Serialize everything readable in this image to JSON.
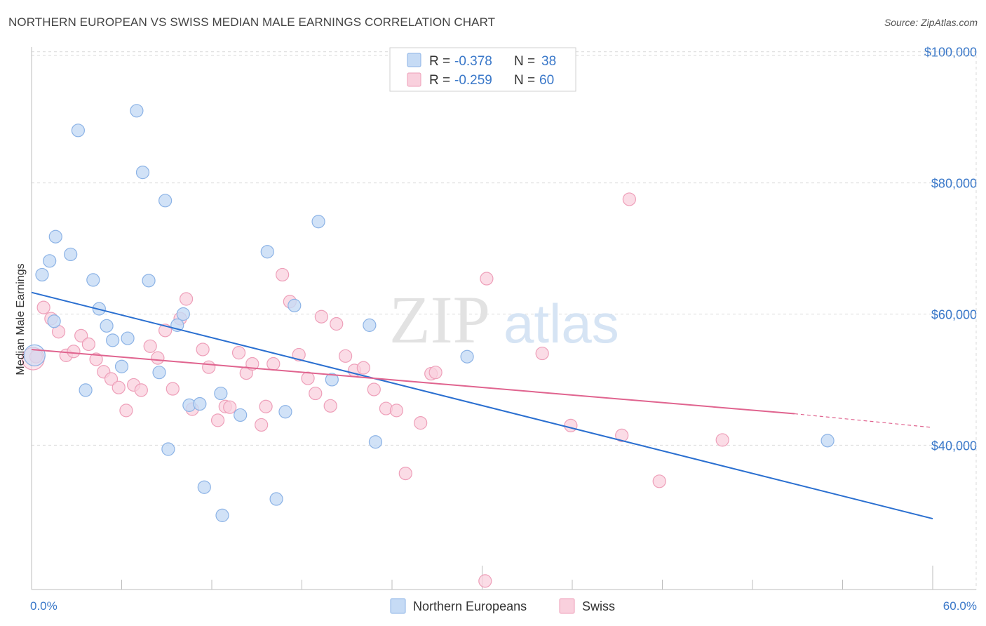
{
  "header": {
    "title": "NORTHERN EUROPEAN VS SWISS MEDIAN MALE EARNINGS CORRELATION CHART",
    "source": "Source: ZipAtlas.com"
  },
  "watermark": {
    "zip": "ZIP",
    "atlas": "atlas"
  },
  "legend_top": {
    "rows": [
      {
        "r_label": "R =",
        "r_value": "-0.378",
        "n_label": "N =",
        "n_value": "38",
        "color": "#a9c8f0"
      },
      {
        "r_label": "R =",
        "r_value": "-0.259",
        "n_label": "N =",
        "n_value": "60",
        "color": "#f6b6c9"
      }
    ]
  },
  "legend_bottom": {
    "items": [
      {
        "label": "Northern Europeans",
        "color": "#a9c8f0"
      },
      {
        "label": "Swiss",
        "color": "#f6b6c9"
      }
    ]
  },
  "colors": {
    "blue_fill": "#c6dbf5",
    "blue_stroke": "#8cb3e6",
    "blue_line": "#2a6fd0",
    "pink_fill": "#f9d0dd",
    "pink_stroke": "#ee9fb9",
    "pink_line": "#e0648f",
    "grid": "#d9d9d9",
    "axis_text": "#3a78c9"
  },
  "chart_data": {
    "type": "scatter",
    "title": "NORTHERN EUROPEAN VS SWISS MEDIAN MALE EARNINGS CORRELATION CHART",
    "xlabel": "",
    "ylabel": "Median Male Earnings",
    "xlim": [
      0,
      60
    ],
    "ylim": [
      18000,
      102000
    ],
    "x_tick_labels": [
      "0.0%",
      "60.0%"
    ],
    "y_ticks": [
      40000,
      60000,
      80000,
      100000
    ],
    "y_tick_labels": [
      "$40,000",
      "$60,000",
      "$80,000",
      "$100,000"
    ],
    "grid": true,
    "legend_placement": "top-center",
    "series": [
      {
        "name": "Northern Europeans",
        "r": -0.378,
        "n": 38,
        "trend": {
          "x": [
            0,
            60
          ],
          "y": [
            63300,
            28800
          ]
        },
        "points": [
          [
            0.2,
            53700
          ],
          [
            0.7,
            66000
          ],
          [
            1.2,
            68100
          ],
          [
            1.6,
            71800
          ],
          [
            2.6,
            69100
          ],
          [
            1.5,
            58900
          ],
          [
            3.1,
            88000
          ],
          [
            4.1,
            65200
          ],
          [
            4.5,
            60800
          ],
          [
            5.0,
            58200
          ],
          [
            5.4,
            56000
          ],
          [
            6.4,
            56300
          ],
          [
            6.0,
            52000
          ],
          [
            7.0,
            91000
          ],
          [
            7.4,
            81600
          ],
          [
            8.9,
            77300
          ],
          [
            7.8,
            65100
          ],
          [
            8.5,
            51100
          ],
          [
            10.1,
            60000
          ],
          [
            9.7,
            58300
          ],
          [
            9.1,
            39400
          ],
          [
            3.6,
            48400
          ],
          [
            10.5,
            46100
          ],
          [
            11.2,
            46300
          ],
          [
            12.6,
            47900
          ],
          [
            13.9,
            44600
          ],
          [
            11.5,
            33600
          ],
          [
            12.7,
            29300
          ],
          [
            15.7,
            69500
          ],
          [
            17.5,
            61300
          ],
          [
            16.9,
            45100
          ],
          [
            16.3,
            31800
          ],
          [
            19.1,
            74100
          ],
          [
            20.0,
            50000
          ],
          [
            22.5,
            58300
          ],
          [
            22.9,
            40500
          ],
          [
            29.0,
            53500
          ],
          [
            53.0,
            40700
          ]
        ]
      },
      {
        "name": "Swiss",
        "r": -0.259,
        "n": 60,
        "trend": {
          "x": [
            0,
            50.8
          ],
          "y": [
            54600,
            44800
          ]
        },
        "trend_dashed": {
          "x": [
            50.8,
            60
          ],
          "y": [
            44800,
            42700
          ]
        },
        "points": [
          [
            0.3,
            53500
          ],
          [
            0.8,
            61000
          ],
          [
            1.3,
            59300
          ],
          [
            1.8,
            57300
          ],
          [
            2.3,
            53700
          ],
          [
            2.8,
            54300
          ],
          [
            3.3,
            56700
          ],
          [
            3.8,
            55400
          ],
          [
            4.3,
            53100
          ],
          [
            4.8,
            51200
          ],
          [
            5.3,
            50100
          ],
          [
            5.8,
            48800
          ],
          [
            6.3,
            45300
          ],
          [
            6.8,
            49200
          ],
          [
            7.3,
            48400
          ],
          [
            7.9,
            55100
          ],
          [
            8.4,
            53300
          ],
          [
            8.9,
            57500
          ],
          [
            9.4,
            48600
          ],
          [
            9.9,
            59300
          ],
          [
            10.3,
            62300
          ],
          [
            10.7,
            45500
          ],
          [
            11.4,
            54600
          ],
          [
            11.8,
            51900
          ],
          [
            12.4,
            43800
          ],
          [
            12.9,
            45900
          ],
          [
            13.2,
            45800
          ],
          [
            13.8,
            54100
          ],
          [
            14.3,
            51000
          ],
          [
            14.7,
            52400
          ],
          [
            15.3,
            43100
          ],
          [
            15.6,
            45900
          ],
          [
            16.1,
            52400
          ],
          [
            16.7,
            66000
          ],
          [
            17.2,
            61900
          ],
          [
            17.8,
            53800
          ],
          [
            18.4,
            50200
          ],
          [
            18.9,
            47900
          ],
          [
            19.3,
            59600
          ],
          [
            19.9,
            46000
          ],
          [
            20.3,
            58500
          ],
          [
            20.9,
            53600
          ],
          [
            21.5,
            51400
          ],
          [
            22.1,
            51800
          ],
          [
            22.8,
            48500
          ],
          [
            23.6,
            45600
          ],
          [
            24.3,
            45300
          ],
          [
            24.9,
            35700
          ],
          [
            25.9,
            43400
          ],
          [
            26.6,
            50900
          ],
          [
            26.9,
            51100
          ],
          [
            30.3,
            65400
          ],
          [
            30.2,
            19300
          ],
          [
            34.0,
            54000
          ],
          [
            35.9,
            43000
          ],
          [
            39.3,
            41500
          ],
          [
            39.8,
            77500
          ],
          [
            41.8,
            34500
          ],
          [
            46.0,
            40800
          ],
          [
            0.1,
            53200
          ]
        ]
      }
    ]
  }
}
